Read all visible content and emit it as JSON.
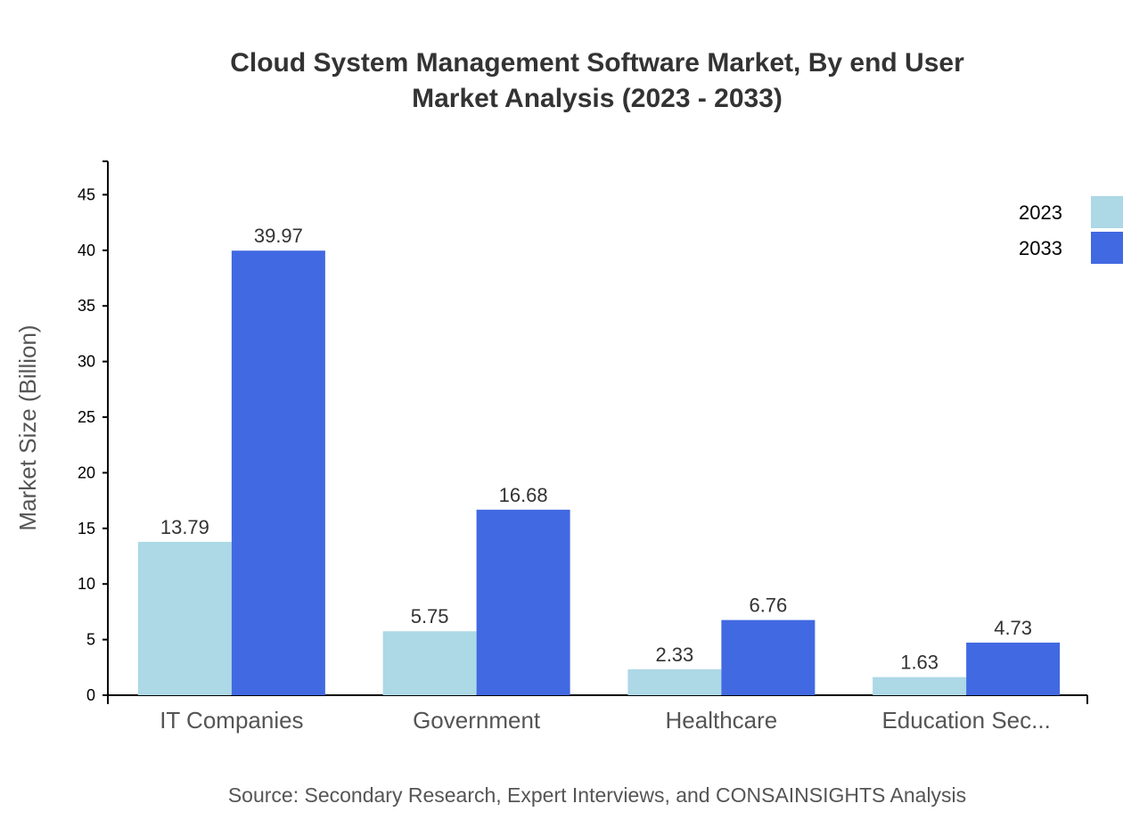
{
  "chart_data": {
    "type": "bar",
    "title": [
      "Cloud System Management Software Market, By end User",
      "Market Analysis (2023 - 2033)"
    ],
    "ylabel": "Market Size (Billion)",
    "xlabel": "",
    "categories": [
      "IT Companies",
      "Government",
      "Healthcare",
      "Education Sec..."
    ],
    "series": [
      {
        "name": "2023",
        "color": "#add8e6",
        "values": [
          13.79,
          5.75,
          2.33,
          1.63
        ]
      },
      {
        "name": "2033",
        "color": "#4169e1",
        "values": [
          39.97,
          16.68,
          6.76,
          4.73
        ]
      }
    ],
    "ylim": [
      0,
      48
    ],
    "yticks": [
      0,
      5,
      10,
      15,
      20,
      25,
      30,
      35,
      40,
      45
    ],
    "grid": false,
    "legend": "top-right",
    "source": "Source: Secondary Research, Expert Interviews, and CONSAINSIGHTS Analysis"
  }
}
